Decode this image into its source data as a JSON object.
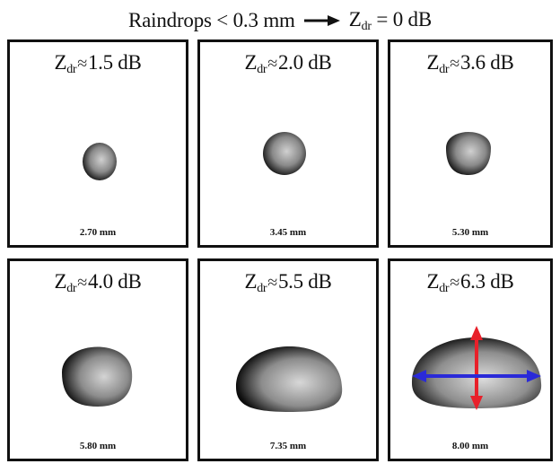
{
  "header": {
    "prefix": "Raindrops < 0.3 mm",
    "z_main": "Z",
    "z_sub": "dr",
    "z_rest": " = 0 dB"
  },
  "panels": [
    {
      "z_main": "Z",
      "z_sub": "dr",
      "approx": "≈",
      "value": "1.5 dB",
      "diameter": "2.70 mm"
    },
    {
      "z_main": "Z",
      "z_sub": "dr",
      "approx": "≈",
      "value": "2.0 dB",
      "diameter": "3.45 mm"
    },
    {
      "z_main": "Z",
      "z_sub": "dr",
      "approx": "≈",
      "value": "3.6 dB",
      "diameter": "5.30 mm"
    },
    {
      "z_main": "Z",
      "z_sub": "dr",
      "approx": "≈",
      "value": "4.0 dB",
      "diameter": "5.80 mm"
    },
    {
      "z_main": "Z",
      "z_sub": "dr",
      "approx": "≈",
      "value": "5.5 dB",
      "diameter": "7.35 mm"
    },
    {
      "z_main": "Z",
      "z_sub": "dr",
      "approx": "≈",
      "value": "6.3 dB",
      "diameter": "8.00 mm"
    }
  ],
  "colors": {
    "drop_edge": "#0d0d0d",
    "drop_center": "#c8c8c8",
    "vertical_axis_arrow": "#e8202a",
    "horizontal_axis_arrow": "#2a2ad8"
  }
}
